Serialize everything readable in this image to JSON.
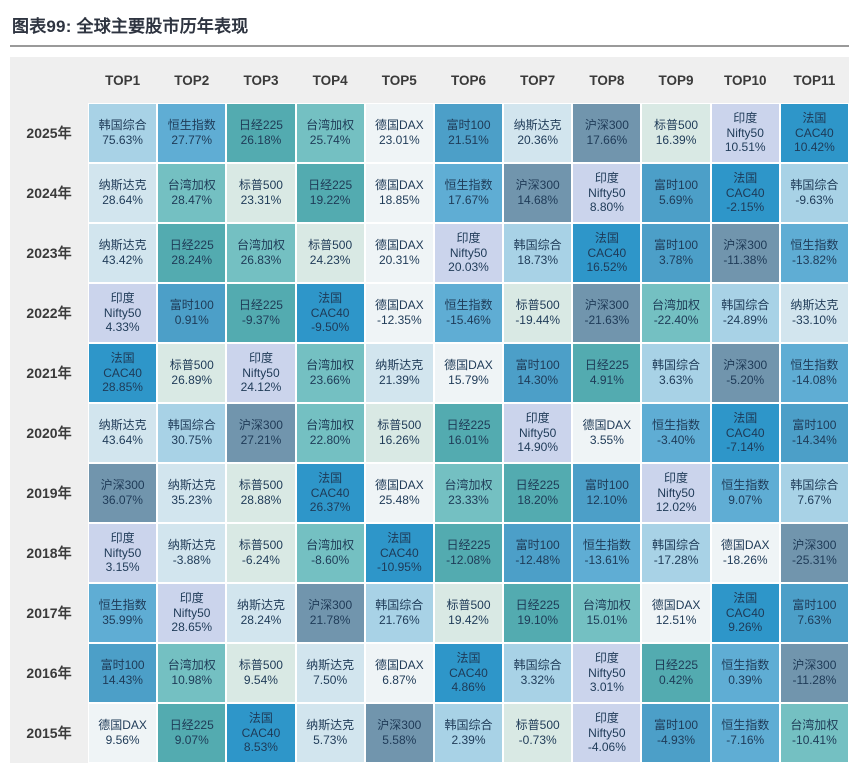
{
  "header": {
    "title": "图表99: 全球主要股市历年表现"
  },
  "colors": {
    "title_text": "#2e3440",
    "cell_text": "#1e3a57",
    "table_header_bg": "#efefef",
    "rule": "#9a9a9a"
  },
  "chart_data": {
    "type": "heatmap",
    "title": "图表99: 全球主要股市历年表现",
    "columns": [
      "TOP1",
      "TOP2",
      "TOP3",
      "TOP4",
      "TOP5",
      "TOP6",
      "TOP7",
      "TOP8",
      "TOP9",
      "TOP10",
      "TOP11"
    ],
    "row_label_suffix": "年",
    "market_colors": {
      "韩国综合": "#a8d2e6",
      "恒生指数": "#5fadd4",
      "日经225": "#53abb0",
      "台湾加权": "#74c0c2",
      "德国DAX": "#eff4f6",
      "富时100": "#4c9fc8",
      "纳斯达克": "#d2e5ee",
      "沪深300": "#7195ad",
      "标普500": "#d9e9e4",
      "印度Nifty50": "#cbd4ec",
      "法国CAC40": "#2e96c9"
    },
    "market_display": {
      "印度Nifty50": "印度\nNifty50",
      "法国CAC40": "法国\nCAC40"
    },
    "rows": [
      {
        "year": "2025年",
        "cells": [
          {
            "market": "韩国综合",
            "value": "75.63%"
          },
          {
            "market": "恒生指数",
            "value": "27.77%"
          },
          {
            "market": "日经225",
            "value": "26.18%"
          },
          {
            "market": "台湾加权",
            "value": "25.74%"
          },
          {
            "market": "德国DAX",
            "value": "23.01%"
          },
          {
            "market": "富时100",
            "value": "21.51%"
          },
          {
            "market": "纳斯达克",
            "value": "20.36%"
          },
          {
            "market": "沪深300",
            "value": "17.66%"
          },
          {
            "market": "标普500",
            "value": "16.39%"
          },
          {
            "market": "印度Nifty50",
            "value": "10.51%"
          },
          {
            "market": "法国CAC40",
            "value": "10.42%"
          }
        ]
      },
      {
        "year": "2024年",
        "cells": [
          {
            "market": "纳斯达克",
            "value": "28.64%"
          },
          {
            "market": "台湾加权",
            "value": "28.47%"
          },
          {
            "market": "标普500",
            "value": "23.31%"
          },
          {
            "market": "日经225",
            "value": "19.22%"
          },
          {
            "market": "德国DAX",
            "value": "18.85%"
          },
          {
            "market": "恒生指数",
            "value": "17.67%"
          },
          {
            "market": "沪深300",
            "value": "14.68%"
          },
          {
            "market": "印度Nifty50",
            "value": "8.80%"
          },
          {
            "market": "富时100",
            "value": "5.69%"
          },
          {
            "market": "法国CAC40",
            "value": "-2.15%"
          },
          {
            "market": "韩国综合",
            "value": "-9.63%"
          }
        ]
      },
      {
        "year": "2023年",
        "cells": [
          {
            "market": "纳斯达克",
            "value": "43.42%"
          },
          {
            "market": "日经225",
            "value": "28.24%"
          },
          {
            "market": "台湾加权",
            "value": "26.83%"
          },
          {
            "market": "标普500",
            "value": "24.23%"
          },
          {
            "market": "德国DAX",
            "value": "20.31%"
          },
          {
            "market": "印度Nifty50",
            "value": "20.03%"
          },
          {
            "market": "韩国综合",
            "value": "18.73%"
          },
          {
            "market": "法国CAC40",
            "value": "16.52%"
          },
          {
            "market": "富时100",
            "value": "3.78%"
          },
          {
            "market": "沪深300",
            "value": "-11.38%"
          },
          {
            "market": "恒生指数",
            "value": "-13.82%"
          }
        ]
      },
      {
        "year": "2022年",
        "cells": [
          {
            "market": "印度Nifty50",
            "value": "4.33%"
          },
          {
            "market": "富时100",
            "value": "0.91%"
          },
          {
            "market": "日经225",
            "value": "-9.37%"
          },
          {
            "market": "法国CAC40",
            "value": "-9.50%"
          },
          {
            "market": "德国DAX",
            "value": "-12.35%"
          },
          {
            "market": "恒生指数",
            "value": "-15.46%"
          },
          {
            "market": "标普500",
            "value": "-19.44%"
          },
          {
            "market": "沪深300",
            "value": "-21.63%"
          },
          {
            "market": "台湾加权",
            "value": "-22.40%"
          },
          {
            "market": "韩国综合",
            "value": "-24.89%"
          },
          {
            "market": "纳斯达克",
            "value": "-33.10%"
          }
        ]
      },
      {
        "year": "2021年",
        "cells": [
          {
            "market": "法国CAC40",
            "value": "28.85%"
          },
          {
            "market": "标普500",
            "value": "26.89%"
          },
          {
            "market": "印度Nifty50",
            "value": "24.12%"
          },
          {
            "market": "台湾加权",
            "value": "23.66%"
          },
          {
            "market": "纳斯达克",
            "value": "21.39%"
          },
          {
            "market": "德国DAX",
            "value": "15.79%"
          },
          {
            "market": "富时100",
            "value": "14.30%"
          },
          {
            "market": "日经225",
            "value": "4.91%"
          },
          {
            "market": "韩国综合",
            "value": "3.63%"
          },
          {
            "market": "沪深300",
            "value": "-5.20%"
          },
          {
            "market": "恒生指数",
            "value": "-14.08%"
          }
        ]
      },
      {
        "year": "2020年",
        "cells": [
          {
            "market": "纳斯达克",
            "value": "43.64%"
          },
          {
            "market": "韩国综合",
            "value": "30.75%"
          },
          {
            "market": "沪深300",
            "value": "27.21%"
          },
          {
            "market": "台湾加权",
            "value": "22.80%"
          },
          {
            "market": "标普500",
            "value": "16.26%"
          },
          {
            "market": "日经225",
            "value": "16.01%"
          },
          {
            "market": "印度Nifty50",
            "value": "14.90%"
          },
          {
            "market": "德国DAX",
            "value": "3.55%"
          },
          {
            "market": "恒生指数",
            "value": "-3.40%"
          },
          {
            "market": "法国CAC40",
            "value": "-7.14%"
          },
          {
            "market": "富时100",
            "value": "-14.34%"
          }
        ]
      },
      {
        "year": "2019年",
        "cells": [
          {
            "market": "沪深300",
            "value": "36.07%"
          },
          {
            "market": "纳斯达克",
            "value": "35.23%"
          },
          {
            "market": "标普500",
            "value": "28.88%"
          },
          {
            "market": "法国CAC40",
            "value": "26.37%"
          },
          {
            "market": "德国DAX",
            "value": "25.48%"
          },
          {
            "market": "台湾加权",
            "value": "23.33%"
          },
          {
            "market": "日经225",
            "value": "18.20%"
          },
          {
            "market": "富时100",
            "value": "12.10%"
          },
          {
            "market": "印度Nifty50",
            "value": "12.02%"
          },
          {
            "market": "恒生指数",
            "value": "9.07%"
          },
          {
            "market": "韩国综合",
            "value": "7.67%"
          }
        ]
      },
      {
        "year": "2018年",
        "cells": [
          {
            "market": "印度Nifty50",
            "value": "3.15%"
          },
          {
            "market": "纳斯达克",
            "value": "-3.88%"
          },
          {
            "market": "标普500",
            "value": "-6.24%"
          },
          {
            "market": "台湾加权",
            "value": "-8.60%"
          },
          {
            "market": "法国CAC40",
            "value": "-10.95%"
          },
          {
            "market": "日经225",
            "value": "-12.08%"
          },
          {
            "market": "富时100",
            "value": "-12.48%"
          },
          {
            "market": "恒生指数",
            "value": "-13.61%"
          },
          {
            "market": "韩国综合",
            "value": "-17.28%"
          },
          {
            "market": "德国DAX",
            "value": "-18.26%"
          },
          {
            "market": "沪深300",
            "value": "-25.31%"
          }
        ]
      },
      {
        "year": "2017年",
        "cells": [
          {
            "market": "恒生指数",
            "value": "35.99%"
          },
          {
            "market": "印度Nifty50",
            "value": "28.65%"
          },
          {
            "market": "纳斯达克",
            "value": "28.24%"
          },
          {
            "market": "沪深300",
            "value": "21.78%"
          },
          {
            "market": "韩国综合",
            "value": "21.76%"
          },
          {
            "market": "标普500",
            "value": "19.42%"
          },
          {
            "market": "日经225",
            "value": "19.10%"
          },
          {
            "market": "台湾加权",
            "value": "15.01%"
          },
          {
            "market": "德国DAX",
            "value": "12.51%"
          },
          {
            "market": "法国CAC40",
            "value": "9.26%"
          },
          {
            "market": "富时100",
            "value": "7.63%"
          }
        ]
      },
      {
        "year": "2016年",
        "cells": [
          {
            "market": "富时100",
            "value": "14.43%"
          },
          {
            "market": "台湾加权",
            "value": "10.98%"
          },
          {
            "market": "标普500",
            "value": "9.54%"
          },
          {
            "market": "纳斯达克",
            "value": "7.50%"
          },
          {
            "market": "德国DAX",
            "value": "6.87%"
          },
          {
            "market": "法国CAC40",
            "value": "4.86%"
          },
          {
            "market": "韩国综合",
            "value": "3.32%"
          },
          {
            "market": "印度Nifty50",
            "value": "3.01%"
          },
          {
            "market": "日经225",
            "value": "0.42%"
          },
          {
            "market": "恒生指数",
            "value": "0.39%"
          },
          {
            "market": "沪深300",
            "value": "-11.28%"
          }
        ]
      },
      {
        "year": "2015年",
        "cells": [
          {
            "market": "德国DAX",
            "value": "9.56%"
          },
          {
            "market": "日经225",
            "value": "9.07%"
          },
          {
            "market": "法国CAC40",
            "value": "8.53%"
          },
          {
            "market": "纳斯达克",
            "value": "5.73%"
          },
          {
            "market": "沪深300",
            "value": "5.58%"
          },
          {
            "market": "韩国综合",
            "value": "2.39%"
          },
          {
            "market": "标普500",
            "value": "-0.73%"
          },
          {
            "market": "印度Nifty50",
            "value": "-4.06%"
          },
          {
            "market": "富时100",
            "value": "-4.93%"
          },
          {
            "market": "恒生指数",
            "value": "-7.16%"
          },
          {
            "market": "台湾加权",
            "value": "-10.41%"
          }
        ]
      }
    ]
  }
}
